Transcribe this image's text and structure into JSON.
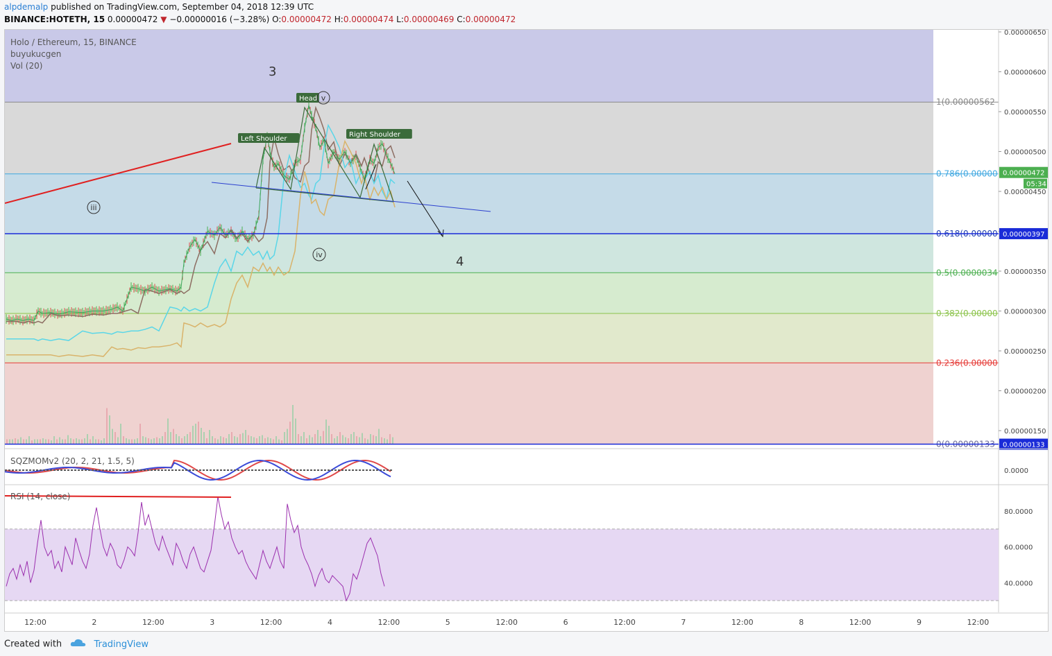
{
  "header": {
    "user": "alpdemalp",
    "published": "published on TradingView.com, September 04, 2018 12:39 UTC",
    "symbol_line": "BINANCE:HOTETH, 15",
    "last": "0.00000472",
    "arrow": "▼",
    "change": "−0.00000016 (−3.28%)",
    "o_label": "O:",
    "o": "0.00000472",
    "h_label": "H:",
    "h": "0.00000474",
    "l_label": "L:",
    "l": "0.00000469",
    "c_label": "C:",
    "c": "0.00000472"
  },
  "legend": {
    "title": "Holo / Ethereum, 15, BINANCE",
    "author": "buyukucgen",
    "vol": "Vol (20)",
    "sqz": "SQZMOMv2 (20, 2, 21, 1.5, 5)",
    "rsi": "RSI (14, close)"
  },
  "footer": {
    "created": "Created with",
    "brand": "TradingView"
  },
  "chart_data": {
    "type": "candlestick",
    "symbol": "HOTETH",
    "exchange": "BINANCE",
    "interval": "15",
    "price_range": [
      1.3e-06,
      6.55e-06
    ],
    "price_ticks": [
      "0.00000650",
      "0.00000600",
      "0.00000550",
      "0.00000500",
      "0.00000450",
      "0.00000400",
      "0.00000350",
      "0.00000300",
      "0.00000250",
      "0.00000200",
      "0.00000150"
    ],
    "price_tick_values": [
      6.5e-06,
      6e-06,
      5.5e-06,
      5e-06,
      4.5e-06,
      4e-06,
      3.5e-06,
      3e-06,
      2.5e-06,
      2e-06,
      1.5e-06
    ],
    "last_price_label": "0.00000472",
    "countdown": "05:34",
    "line_label_blue": "0.00000397",
    "line_label_bottom": "0.00000133",
    "fib_levels": [
      {
        "label": "1(0.00000562",
        "value": 5.62e-06,
        "color": "#888888"
      },
      {
        "label": "0.786(0.00000",
        "value": 4.72e-06,
        "color": "#3fa7e0"
      },
      {
        "label": "0.618(0.00000",
        "value": 3.97e-06,
        "color": "#1f3fb0"
      },
      {
        "label": "0.5(0.0000034",
        "value": 3.48e-06,
        "color": "#4caf50"
      },
      {
        "label": "0.382(0.00000",
        "value": 2.97e-06,
        "color": "#8bc34a"
      },
      {
        "label": "0.236(0.00000",
        "value": 2.35e-06,
        "color": "#e53935"
      },
      {
        "label": "0(0.00000133",
        "value": 1.33e-06,
        "color": "#6a6a9a"
      }
    ],
    "x_ticks": [
      "12:00",
      "2",
      "12:00",
      "3",
      "12:00",
      "4",
      "12:00",
      "5",
      "12:00",
      "6",
      "12:00",
      "7",
      "12:00",
      "8",
      "12:00",
      "9",
      "12:00"
    ],
    "sqz_ticks": [
      "0.0000"
    ],
    "rsi_ticks": [
      "80.0000",
      "60.0000",
      "40.0000"
    ],
    "rsi_tick_values": [
      80,
      60,
      40
    ],
    "rsi_band": [
      30,
      70
    ],
    "annotations": {
      "wave3": "3",
      "wave4": "4",
      "wave_iii": "iii",
      "wave_iv": "iv",
      "wave_v": "v",
      "head": "Head",
      "left_shoulder": "Left Shoulder",
      "right_shoulder": "Right Shoulder"
    },
    "price_path": [
      [
        0,
        2.9
      ],
      [
        4,
        2.88
      ],
      [
        8,
        2.9
      ],
      [
        12,
        2.88
      ],
      [
        16,
        2.9
      ],
      [
        20,
        2.88
      ],
      [
        23,
        3.0
      ],
      [
        26,
        2.97
      ],
      [
        32,
        2.98
      ],
      [
        38,
        2.96
      ],
      [
        45,
        2.99
      ],
      [
        55,
        2.98
      ],
      [
        62,
        3.0
      ],
      [
        70,
        3.0
      ],
      [
        76,
        3.02
      ],
      [
        80,
        3.05
      ],
      [
        84,
        3.0
      ],
      [
        90,
        3.3
      ],
      [
        95,
        3.28
      ],
      [
        100,
        3.25
      ],
      [
        105,
        3.3
      ],
      [
        110,
        3.25
      ],
      [
        118,
        3.28
      ],
      [
        123,
        3.25
      ],
      [
        126,
        3.3
      ],
      [
        128,
        3.6
      ],
      [
        132,
        3.8
      ],
      [
        136,
        3.9
      ],
      [
        140,
        3.75
      ],
      [
        145,
        4.0
      ],
      [
        150,
        3.95
      ],
      [
        154,
        4.05
      ],
      [
        158,
        3.95
      ],
      [
        162,
        4.0
      ],
      [
        166,
        3.9
      ],
      [
        170,
        4.0
      ],
      [
        174,
        3.9
      ],
      [
        178,
        3.95
      ],
      [
        182,
        4.2
      ],
      [
        185,
        4.9
      ],
      [
        188,
        5.2
      ],
      [
        190,
        5.0
      ],
      [
        193,
        4.8
      ],
      [
        196,
        4.85
      ],
      [
        200,
        4.7
      ],
      [
        204,
        4.65
      ],
      [
        208,
        4.85
      ],
      [
        212,
        4.9
      ],
      [
        215,
        5.3
      ],
      [
        218,
        5.58
      ],
      [
        220,
        5.45
      ],
      [
        223,
        5.3
      ],
      [
        226,
        5.05
      ],
      [
        229,
        5.15
      ],
      [
        232,
        4.85
      ],
      [
        236,
        5.0
      ],
      [
        240,
        4.9
      ],
      [
        244,
        5.0
      ],
      [
        248,
        4.85
      ],
      [
        252,
        4.95
      ],
      [
        256,
        4.75
      ],
      [
        258,
        4.65
      ],
      [
        262,
        4.9
      ],
      [
        265,
        4.85
      ],
      [
        268,
        5.05
      ],
      [
        271,
        5.1
      ],
      [
        274,
        4.95
      ],
      [
        277,
        4.85
      ],
      [
        280,
        4.72
      ]
    ],
    "x_index_max": 680,
    "volume": [
      0.05,
      0.05,
      0.05,
      0.06,
      0.05,
      0.07,
      0.05,
      0.05,
      0.08,
      0.04,
      0.05,
      0.05,
      0.05,
      0.06,
      0.05,
      0.05,
      0.04,
      0.08,
      0.05,
      0.07,
      0.05,
      0.05,
      0.09,
      0.06,
      0.05,
      0.06,
      0.05,
      0.05,
      0.06,
      0.1,
      0.05,
      0.08,
      0.05,
      0.05,
      0.04,
      0.06,
      0.35,
      0.28,
      0.15,
      0.12,
      0.07,
      0.2,
      0.08,
      0.06,
      0.05,
      0.05,
      0.05,
      0.06,
      0.2,
      0.08,
      0.07,
      0.06,
      0.05,
      0.06,
      0.07,
      0.06,
      0.08,
      0.12,
      0.25,
      0.12,
      0.15,
      0.1,
      0.08,
      0.06,
      0.08,
      0.1,
      0.12,
      0.18,
      0.2,
      0.22,
      0.16,
      0.12,
      0.06,
      0.14,
      0.08,
      0.06,
      0.05,
      0.08,
      0.07,
      0.06,
      0.1,
      0.12,
      0.08,
      0.07,
      0.1,
      0.11,
      0.14,
      0.09,
      0.08,
      0.07,
      0.06,
      0.08,
      0.09,
      0.06,
      0.07,
      0.06,
      0.05,
      0.08,
      0.05,
      0.04,
      0.12,
      0.15,
      0.22,
      0.38,
      0.25,
      0.1,
      0.08,
      0.12,
      0.06,
      0.09,
      0.07,
      0.1,
      0.14,
      0.08,
      0.13,
      0.24,
      0.18,
      0.1,
      0.06,
      0.08,
      0.12,
      0.09,
      0.07,
      0.06,
      0.1,
      0.12,
      0.08,
      0.07,
      0.11,
      0.06,
      0.05,
      0.1,
      0.09,
      0.08,
      0.15,
      0.07,
      0.06,
      0.05,
      0.1,
      0.07
    ],
    "rsi": [
      38,
      45,
      48,
      42,
      50,
      44,
      52,
      40,
      47,
      62,
      75,
      60,
      55,
      58,
      48,
      52,
      46,
      60,
      55,
      50,
      65,
      58,
      52,
      48,
      56,
      72,
      82,
      70,
      60,
      55,
      62,
      58,
      50,
      48,
      53,
      60,
      58,
      55,
      68,
      85,
      72,
      78,
      70,
      62,
      58,
      66,
      60,
      55,
      50,
      62,
      58,
      52,
      48,
      56,
      60,
      54,
      48,
      46,
      52,
      58,
      72,
      88,
      78,
      70,
      74,
      65,
      60,
      56,
      58,
      52,
      48,
      45,
      42,
      50,
      58,
      52,
      48,
      54,
      60,
      52,
      48,
      84,
      75,
      68,
      72,
      60,
      54,
      50,
      45,
      38,
      44,
      48,
      42,
      40,
      44,
      42,
      40,
      38,
      30,
      34,
      45,
      42,
      48,
      55,
      62,
      65,
      60,
      55,
      45,
      38
    ]
  }
}
